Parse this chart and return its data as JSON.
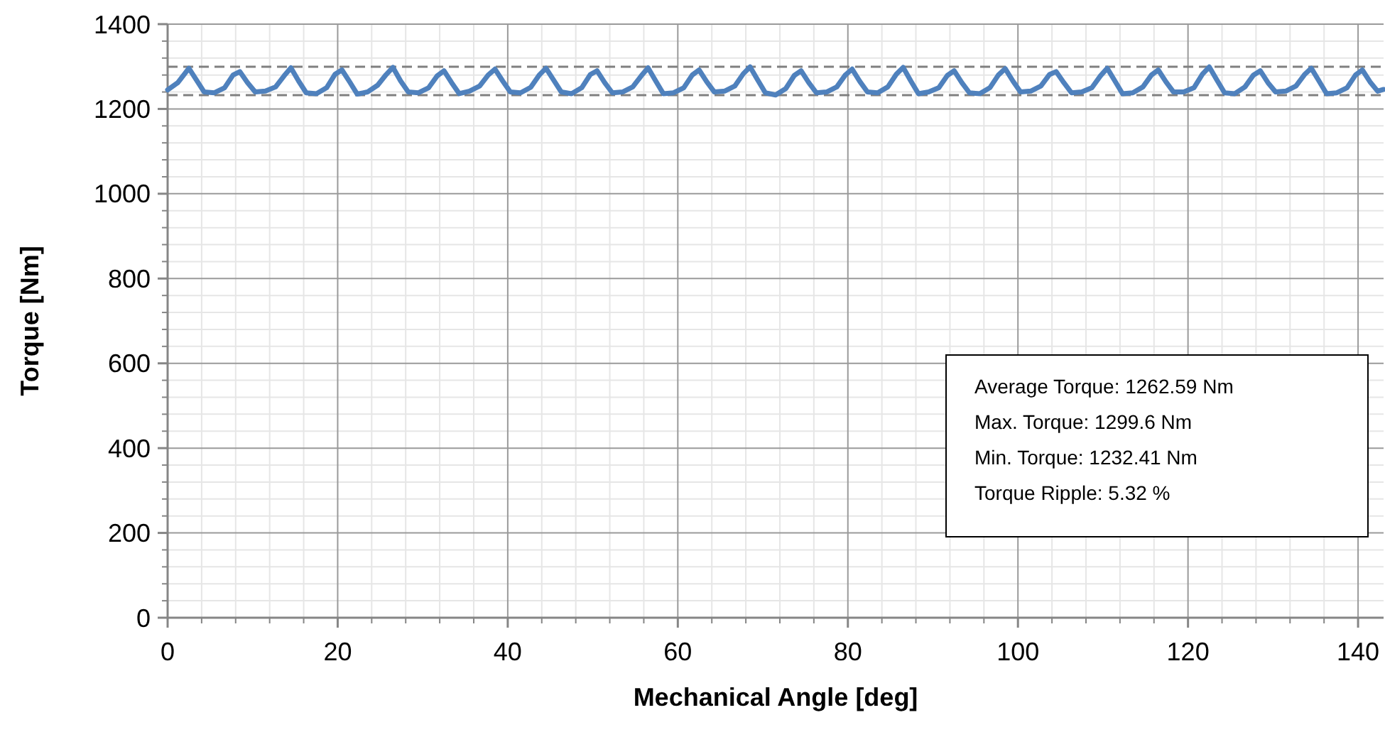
{
  "chart_data": {
    "type": "line",
    "xlabel": "Mechanical Angle [deg]",
    "ylabel": "Torque [Nm]",
    "xlim": [
      0,
      143
    ],
    "xticks": [
      0,
      20,
      40,
      60,
      80,
      100,
      120,
      140
    ],
    "ylim": [
      0,
      1400
    ],
    "yticks": [
      0,
      200,
      400,
      600,
      800,
      1000,
      1200,
      1400
    ],
    "grid": true,
    "marker": "none",
    "line_style": "solid",
    "series": [
      {
        "color": "#4f81bd",
        "x": [
          0,
          1.2,
          2.5,
          3.4,
          4.3,
          5.5,
          6.7,
          7.7,
          8.5,
          9.4,
          10.3,
          11.5,
          12.7,
          13.7,
          14.5,
          15.4,
          16.3,
          17.5,
          18.7,
          19.7,
          20.5,
          21.4,
          22.3,
          23.5,
          24.7,
          25.7,
          26.5,
          27.4,
          28.3,
          29.5,
          30.7,
          31.7,
          32.5,
          33.4,
          34.3,
          35.5,
          36.7,
          37.7,
          38.5,
          39.4,
          40.3,
          41.5,
          42.7,
          43.7,
          44.5,
          45.4,
          46.3,
          47.5,
          48.7,
          49.7,
          50.5,
          51.4,
          52.3,
          53.5,
          54.7,
          55.7,
          56.5,
          57.4,
          58.3,
          59.5,
          60.7,
          61.7,
          62.5,
          63.4,
          64.3,
          65.5,
          66.7,
          67.7,
          68.5,
          69.4,
          70.3,
          71.5,
          72.7,
          73.7,
          74.5,
          75.4,
          76.3,
          77.5,
          78.7,
          79.7,
          80.5,
          81.4,
          82.3,
          83.5,
          84.7,
          85.7,
          86.5,
          87.4,
          88.3,
          89.5,
          90.7,
          91.7,
          92.5,
          93.4,
          94.3,
          95.5,
          96.7,
          97.7,
          98.5,
          99.4,
          100.3,
          101.5,
          102.7,
          103.7,
          104.5,
          105.4,
          106.3,
          107.5,
          108.7,
          109.7,
          110.5,
          111.4,
          112.3,
          113.5,
          114.7,
          115.7,
          116.5,
          117.4,
          118.3,
          119.5,
          120.7,
          121.7,
          122.5,
          123.4,
          124.3,
          125.5,
          126.7,
          127.7,
          128.5,
          129.4,
          130.3,
          131.5,
          132.7,
          133.7,
          134.5,
          135.4,
          136.3,
          137.5,
          138.7,
          139.7,
          140.5,
          141.4,
          142.3,
          143
        ],
        "values": [
          1245,
          1262,
          1296,
          1268,
          1240,
          1238,
          1250,
          1280,
          1288,
          1262,
          1240,
          1242,
          1252,
          1278,
          1297,
          1266,
          1238,
          1236,
          1250,
          1282,
          1292,
          1264,
          1235,
          1240,
          1256,
          1281,
          1298,
          1266,
          1240,
          1238,
          1250,
          1278,
          1290,
          1262,
          1236,
          1242,
          1254,
          1280,
          1294,
          1266,
          1240,
          1238,
          1251,
          1280,
          1296,
          1268,
          1240,
          1236,
          1250,
          1281,
          1290,
          1262,
          1238,
          1240,
          1252,
          1278,
          1297,
          1266,
          1236,
          1238,
          1250,
          1280,
          1292,
          1264,
          1240,
          1242,
          1254,
          1283,
          1299,
          1268,
          1238,
          1233,
          1248,
          1279,
          1290,
          1262,
          1238,
          1240,
          1252,
          1280,
          1294,
          1265,
          1240,
          1238,
          1252,
          1282,
          1298,
          1266,
          1236,
          1240,
          1250,
          1279,
          1290,
          1262,
          1238,
          1236,
          1250,
          1280,
          1295,
          1266,
          1240,
          1242,
          1254,
          1281,
          1288,
          1262,
          1238,
          1240,
          1250,
          1278,
          1296,
          1266,
          1236,
          1238,
          1252,
          1280,
          1292,
          1264,
          1240,
          1240,
          1250,
          1282,
          1299,
          1268,
          1238,
          1236,
          1252,
          1280,
          1290,
          1262,
          1240,
          1242,
          1254,
          1281,
          1296,
          1266,
          1236,
          1238,
          1250,
          1280,
          1292,
          1264,
          1242,
          1246
        ]
      }
    ],
    "ref_lines": [
      {
        "axis": "y",
        "value": 1299.6,
        "color": "#808080",
        "line_style": "dashed"
      },
      {
        "axis": "y",
        "value": 1232.41,
        "color": "#808080",
        "line_style": "dashed"
      }
    ],
    "annotations": [
      "Average Torque: 1262.59 Nm",
      "Max. Torque: 1299.6 Nm",
      "Min. Torque: 1232.41 Nm",
      "Torque Ripple: 5.32 %"
    ]
  }
}
